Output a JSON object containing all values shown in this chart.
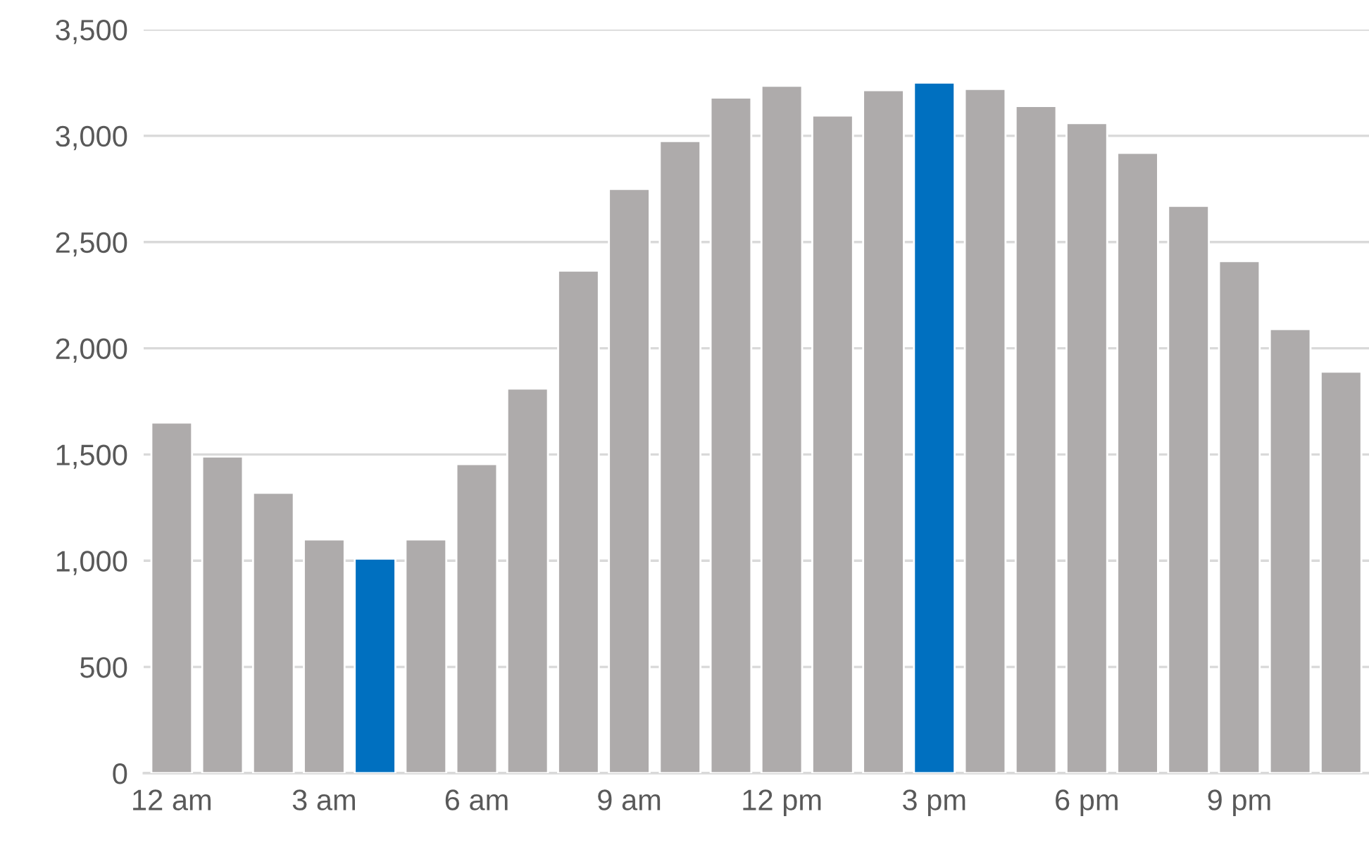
{
  "chart_data": {
    "type": "bar",
    "categories": [
      "12 am",
      null,
      null,
      "3 am",
      null,
      null,
      "6 am",
      null,
      null,
      "9 am",
      null,
      null,
      "12 pm",
      null,
      null,
      "3 pm",
      null,
      null,
      "6 pm",
      null,
      null,
      "9 pm",
      null,
      null
    ],
    "values": [
      1650,
      1490,
      1320,
      1100,
      1010,
      1100,
      1455,
      1810,
      2365,
      2750,
      2975,
      3180,
      3235,
      3095,
      3215,
      3250,
      3220,
      3140,
      3060,
      2920,
      2670,
      2410,
      2090,
      1890
    ],
    "colors": [
      "#aeabab",
      "#aeabab",
      "#aeabab",
      "#aeabab",
      "#0070c0",
      "#aeabab",
      "#aeabab",
      "#aeabab",
      "#aeabab",
      "#aeabab",
      "#aeabab",
      "#aeabab",
      "#aeabab",
      "#aeabab",
      "#aeabab",
      "#0070c0",
      "#aeabab",
      "#aeabab",
      "#aeabab",
      "#aeabab",
      "#aeabab",
      "#aeabab",
      "#aeabab",
      "#aeabab"
    ],
    "ylim": [
      0,
      3500
    ],
    "yticks": [
      0,
      500,
      {
        "value": 1000,
        "label": "1,000"
      },
      {
        "value": 1500,
        "label": "1,500"
      },
      {
        "value": 2000,
        "label": "2,000"
      },
      {
        "value": 2500,
        "label": "2,500"
      },
      {
        "value": 3000,
        "label": "3,000"
      },
      {
        "value": 3500,
        "label": "3,500"
      }
    ],
    "grid": "y"
  }
}
